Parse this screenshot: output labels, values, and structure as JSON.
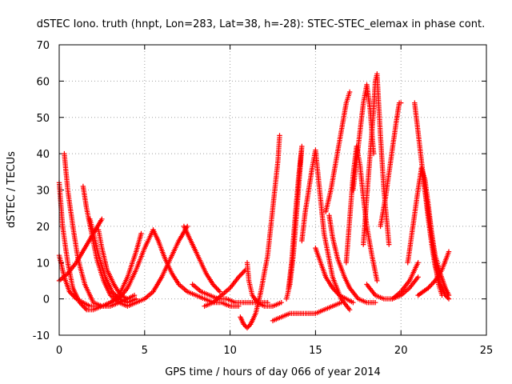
{
  "chart_data": {
    "type": "scatter",
    "title": "dSTEC Iono. truth (hnpt, Lon=283, Lat=38, h=-28): STEC-STEC_elemax in phase cont.",
    "xlabel": "GPS time / hours of day 066 of year 2014",
    "ylabel": "dSTEC  / TECUs",
    "xlim": [
      0,
      25
    ],
    "ylim": [
      -10,
      70
    ],
    "xticks": [
      0,
      5,
      10,
      15,
      20,
      25
    ],
    "yticks": [
      -10,
      0,
      10,
      20,
      30,
      40,
      50,
      60,
      70
    ],
    "grid": true,
    "marker": "+",
    "color": "#ff0000",
    "series": [
      {
        "x": [
          0.0,
          0.2,
          0.5,
          0.8,
          1.2,
          1.6,
          2.0,
          2.5,
          3.0,
          3.5,
          4.0,
          4.5,
          4.8
        ],
        "y": [
          32,
          20,
          10,
          3,
          -1,
          -3,
          -3,
          -2,
          -1,
          1,
          6,
          13,
          18
        ]
      },
      {
        "x": [
          0.3,
          0.5,
          0.8,
          1.1,
          1.5,
          2.0,
          2.5,
          3.0,
          3.5,
          4.0,
          4.4
        ],
        "y": [
          40,
          30,
          20,
          11,
          4,
          -1,
          -2,
          -2,
          -1,
          0,
          1
        ]
      },
      {
        "x": [
          0.0,
          0.3,
          0.6,
          1.0,
          1.4,
          1.8,
          2.2,
          2.6,
          3.0,
          3.5,
          4.0,
          4.5,
          5.0,
          5.5
        ],
        "y": [
          12,
          6,
          2,
          0,
          -1,
          -2,
          -2,
          -2,
          -1,
          0,
          3,
          8,
          14,
          19
        ]
      },
      {
        "x": [
          0.0,
          0.5,
          1.0,
          1.5,
          2.0,
          2.5
        ],
        "y": [
          5,
          7,
          10,
          14,
          18,
          22
        ]
      },
      {
        "x": [
          1.4,
          1.6,
          1.9,
          2.2,
          2.6,
          3.0,
          3.5,
          4.0,
          4.5,
          5.0,
          5.5,
          6.0,
          6.5,
          7.0,
          7.5
        ],
        "y": [
          31,
          25,
          18,
          11,
          5,
          1,
          -1,
          -2,
          -1,
          0,
          2,
          6,
          11,
          16,
          20
        ]
      },
      {
        "x": [
          1.8,
          2.0,
          2.3,
          2.7,
          3.1,
          3.5,
          4.0,
          4.5
        ],
        "y": [
          22,
          18,
          12,
          6,
          2,
          0,
          -1,
          0
        ]
      },
      {
        "x": [
          2.3,
          2.5,
          2.8,
          3.2,
          3.6,
          4.0
        ],
        "y": [
          19,
          14,
          8,
          4,
          1,
          0
        ]
      },
      {
        "x": [
          5.5,
          5.8,
          6.2,
          6.6,
          7.0,
          7.5,
          8.0,
          8.5,
          9.0,
          9.5,
          10.0,
          10.5
        ],
        "y": [
          19,
          16,
          11,
          7,
          4,
          2,
          1,
          0,
          -1,
          -1,
          -2,
          -2
        ]
      },
      {
        "x": [
          7.3,
          7.5,
          7.8,
          8.2,
          8.6,
          9.0,
          9.4
        ],
        "y": [
          20,
          18,
          15,
          11,
          7,
          4,
          2
        ]
      },
      {
        "x": [
          7.8,
          8.3,
          8.8,
          9.3,
          9.8,
          10.3,
          10.8,
          11.3,
          11.8,
          12.2
        ],
        "y": [
          4,
          2,
          1,
          0,
          0,
          -1,
          -1,
          -1,
          -1,
          -1
        ]
      },
      {
        "x": [
          8.5,
          9.0,
          9.5,
          10.0,
          10.5,
          10.9
        ],
        "y": [
          -2,
          -1,
          1,
          3,
          6,
          8
        ]
      },
      {
        "x": [
          10.6,
          10.8,
          11.0,
          11.2,
          11.5,
          11.8,
          12.2,
          12.5,
          12.8,
          12.9
        ],
        "y": [
          -5,
          -7,
          -8,
          -7,
          -4,
          2,
          12,
          25,
          38,
          45
        ]
      },
      {
        "x": [
          11.0,
          11.1,
          11.3,
          11.6,
          12.0,
          12.5,
          13.0
        ],
        "y": [
          10,
          5,
          1,
          -1,
          -2,
          -2,
          -1
        ]
      },
      {
        "x": [
          12.5,
          13.0,
          13.5,
          14.0,
          14.5,
          15.0,
          15.5,
          16.0,
          16.5
        ],
        "y": [
          -6,
          -5,
          -4,
          -4,
          -4,
          -4,
          -3,
          -2,
          -1
        ]
      },
      {
        "x": [
          13.3,
          13.5,
          13.7,
          13.9,
          14.1,
          14.2,
          14.0,
          13.8,
          13.6,
          13.4
        ],
        "y": [
          0,
          4,
          12,
          24,
          36,
          42,
          33,
          22,
          10,
          2
        ]
      },
      {
        "x": [
          14.2,
          14.4,
          14.6,
          14.8,
          15.0,
          15.5,
          16.0,
          16.5,
          17.0
        ],
        "y": [
          16,
          24,
          30,
          36,
          41,
          18,
          6,
          0,
          -3
        ]
      },
      {
        "x": [
          15.0,
          15.3,
          15.6,
          16.0,
          16.4,
          16.8,
          17.2
        ],
        "y": [
          14,
          10,
          6,
          3,
          1,
          0,
          -1
        ]
      },
      {
        "x": [
          15.6,
          15.9,
          16.2,
          16.5,
          16.8,
          17.0
        ],
        "y": [
          24,
          30,
          38,
          46,
          54,
          57
        ]
      },
      {
        "x": [
          15.8,
          16.0,
          16.3,
          16.7,
          17.0,
          17.5,
          18.0,
          18.5
        ],
        "y": [
          23,
          17,
          11,
          6,
          3,
          0,
          -1,
          -1
        ]
      },
      {
        "x": [
          16.8,
          17.0,
          17.2,
          17.4,
          17.6,
          17.8,
          18.0,
          18.3,
          18.6
        ],
        "y": [
          10,
          22,
          34,
          42,
          37,
          28,
          20,
          12,
          5
        ]
      },
      {
        "x": [
          17.8,
          18.0,
          18.2,
          18.4,
          18.5,
          18.6,
          18.8,
          19.0,
          19.3
        ],
        "y": [
          15,
          28,
          40,
          52,
          60,
          62,
          45,
          30,
          15
        ]
      },
      {
        "x": [
          17.2,
          17.4,
          17.6,
          17.8,
          18.0,
          18.2,
          18.4
        ],
        "y": [
          30,
          38,
          46,
          54,
          59,
          52,
          40
        ]
      },
      {
        "x": [
          18.8,
          19.1,
          19.4,
          19.7,
          19.9,
          20.0
        ],
        "y": [
          20,
          28,
          38,
          48,
          54,
          54
        ]
      },
      {
        "x": [
          18.0,
          18.5,
          19.0,
          19.5,
          20.0,
          20.5,
          21.0
        ],
        "y": [
          4,
          1,
          0,
          0,
          1,
          3,
          6
        ]
      },
      {
        "x": [
          20.8,
          21.0,
          21.2,
          21.4,
          21.6,
          21.8,
          22.0,
          22.3,
          22.6,
          22.8
        ],
        "y": [
          54,
          46,
          38,
          30,
          22,
          15,
          9,
          4,
          1,
          0
        ]
      },
      {
        "x": [
          20.4,
          20.7,
          21.0,
          21.2,
          21.4,
          21.6,
          21.8,
          22.0,
          22.2,
          22.4
        ],
        "y": [
          10,
          20,
          30,
          36,
          33,
          26,
          18,
          10,
          4,
          1
        ]
      },
      {
        "x": [
          21.2,
          21.4,
          21.6,
          21.8,
          22.0,
          22.3,
          22.6,
          22.8
        ],
        "y": [
          36,
          30,
          24,
          18,
          12,
          7,
          3,
          1
        ]
      },
      {
        "x": [
          21.0,
          21.3,
          21.6,
          22.0,
          22.4,
          22.8
        ],
        "y": [
          1,
          2,
          3,
          5,
          8,
          13
        ]
      },
      {
        "x": [
          19.5,
          20.0,
          20.5,
          21.0
        ],
        "y": [
          0,
          2,
          5,
          10
        ]
      }
    ]
  }
}
